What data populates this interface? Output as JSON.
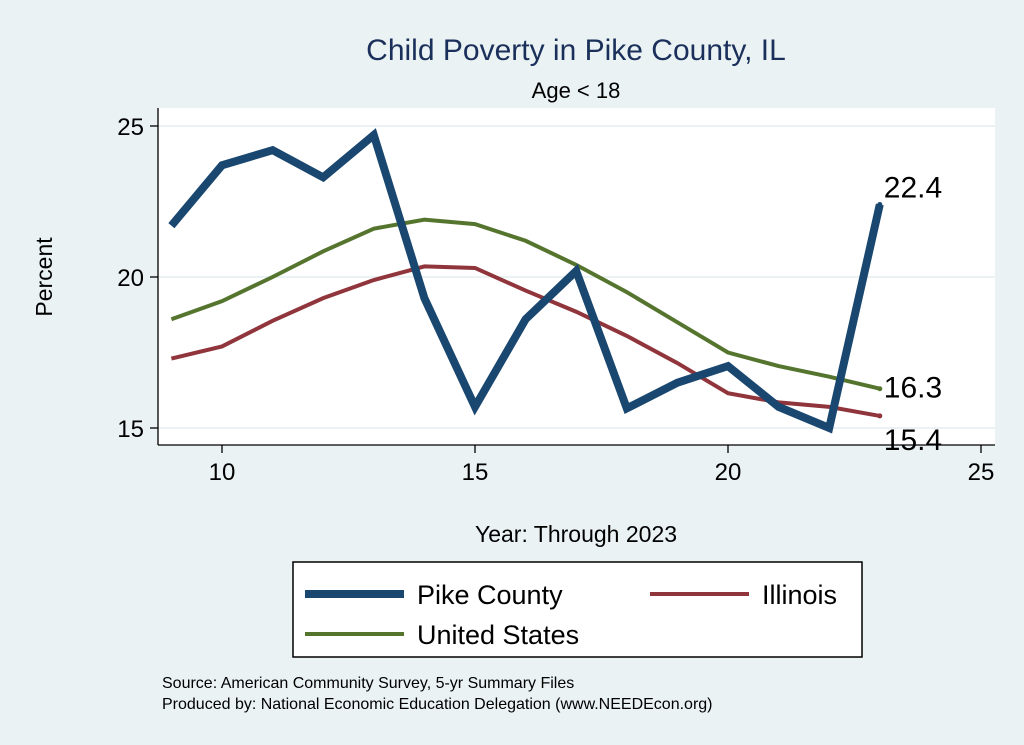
{
  "chart_data": {
    "type": "line",
    "title": "Child Poverty in Pike County, IL",
    "subtitle": "Age < 18",
    "xlabel": "Year: Through 2023",
    "ylabel": "Percent",
    "xlim": [
      8.7,
      25.3
    ],
    "ylim": [
      14.4,
      25.6
    ],
    "xticks": [
      10,
      15,
      20,
      25
    ],
    "yticks": [
      15,
      20,
      25
    ],
    "grid": true,
    "x": [
      9,
      10,
      11,
      12,
      13,
      14,
      15,
      16,
      17,
      18,
      19,
      20,
      21,
      22,
      23
    ],
    "series": [
      {
        "name": "Pike County",
        "color": "#1a476f",
        "width": 8,
        "values": [
          21.7,
          23.7,
          24.2,
          23.3,
          24.7,
          19.3,
          15.7,
          18.6,
          20.2,
          15.65,
          16.5,
          17.05,
          15.7,
          15.0,
          22.4
        ],
        "end_label": "22.4",
        "label_pos": "above"
      },
      {
        "name": "Illinois",
        "color": "#90353b",
        "width": 4,
        "values": [
          17.3,
          17.7,
          18.55,
          19.3,
          19.9,
          20.35,
          20.3,
          19.55,
          18.85,
          18.05,
          17.15,
          16.15,
          15.85,
          15.7,
          15.4
        ],
        "end_label": "15.4",
        "label_pos": "below"
      },
      {
        "name": "United States",
        "color": "#55752f",
        "width": 4,
        "values": [
          18.6,
          19.2,
          20.0,
          20.85,
          21.6,
          21.9,
          21.75,
          21.2,
          20.4,
          19.5,
          18.5,
          17.5,
          17.05,
          16.7,
          16.3
        ],
        "end_label": "16.3",
        "label_pos": "right"
      }
    ],
    "legend_position": "bottom",
    "notes": [
      "Source: American Community Survey, 5-yr Summary Files",
      "Produced by: National Economic Education Delegation (www.NEEDEcon.org)"
    ]
  }
}
